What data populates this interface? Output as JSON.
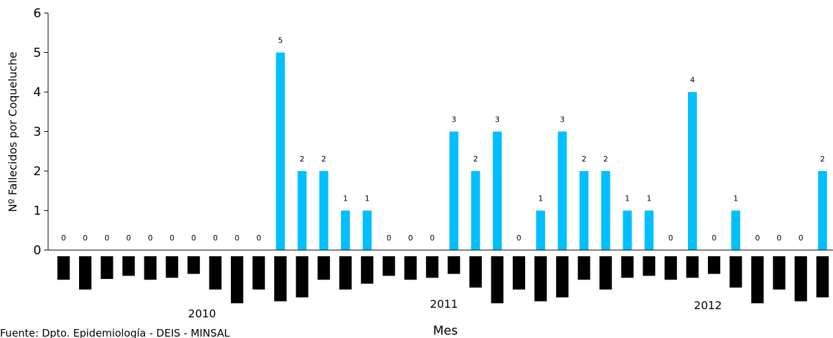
{
  "chart_data": {
    "type": "bar",
    "xlabel": "Mes",
    "ylabel": "Nº Fallecidos por Coqueluche",
    "ylim": [
      0,
      6
    ],
    "yticks": [
      0,
      1,
      2,
      3,
      4,
      5,
      6
    ],
    "grid": false,
    "colors": {
      "bar": "#00BFFF",
      "axis": "#000000",
      "month_marker": "#000000"
    },
    "year_labels": [
      "2010",
      "2011",
      "2012"
    ],
    "values": [
      0,
      0,
      0,
      0,
      0,
      0,
      0,
      0,
      0,
      0,
      5,
      2,
      2,
      1,
      1,
      0,
      0,
      0,
      3,
      2,
      3,
      0,
      1,
      3,
      2,
      2,
      1,
      1,
      0,
      4,
      0,
      1,
      0,
      0,
      0,
      2
    ],
    "month_marker_depths": [
      0.6,
      0.85,
      0.58,
      0.5,
      0.6,
      0.55,
      0.45,
      0.85,
      1.2,
      0.85,
      1.15,
      1.05,
      0.6,
      0.85,
      0.7,
      0.5,
      0.6,
      0.55,
      0.45,
      0.8,
      1.2,
      0.85,
      1.15,
      1.05,
      0.6,
      0.85,
      0.55,
      0.5,
      0.6,
      0.55,
      0.45,
      0.8,
      1.2,
      0.85,
      1.15,
      1.05
    ]
  },
  "source": "Fuente: Dpto. Epidemiología - DEIS - MINSAL"
}
